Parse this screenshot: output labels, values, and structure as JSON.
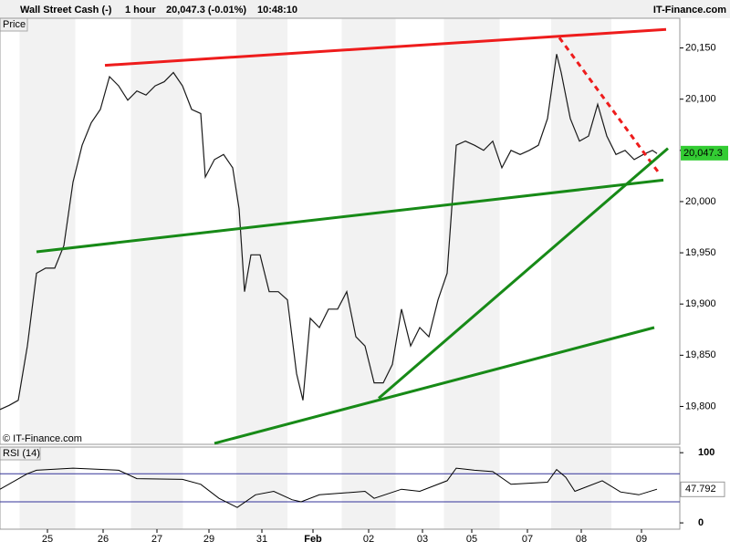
{
  "chart_data": {
    "type": "line",
    "title": "Wall Street Cash (-)",
    "interval": "1 hour",
    "quote": "20,047.3 (-0.01%)",
    "time": "10:48:10",
    "brand": "IT-Finance.com",
    "panel_label": "Price",
    "copyright": "© IT-Finance.com",
    "xlim": [
      0,
      149
    ],
    "xticks": [
      {
        "value": 10.4,
        "label": "25"
      },
      {
        "value": 22.6,
        "label": "26"
      },
      {
        "value": 34.4,
        "label": "27"
      },
      {
        "value": 45.8,
        "label": "29"
      },
      {
        "value": 57.4,
        "label": "31"
      },
      {
        "value": 68.6,
        "label": "Feb"
      },
      {
        "value": 80.8,
        "label": "02"
      },
      {
        "value": 92.6,
        "label": "03"
      },
      {
        "value": 103.4,
        "label": "05"
      },
      {
        "value": 115.6,
        "label": "07"
      },
      {
        "value": 127.4,
        "label": "08"
      },
      {
        "value": 140.6,
        "label": "09"
      }
    ],
    "ylim": [
      19763,
      20179
    ],
    "yticks": [
      {
        "value": 19800,
        "label": "19,800"
      },
      {
        "value": 19850,
        "label": "19,850"
      },
      {
        "value": 19900,
        "label": "19,900"
      },
      {
        "value": 19950,
        "label": "19,950"
      },
      {
        "value": 20000,
        "label": "20,000"
      },
      {
        "value": 20050,
        "label": "20,050"
      },
      {
        "value": 20100,
        "label": "20,100"
      },
      {
        "value": 20150,
        "label": "20,150"
      }
    ],
    "last_price": {
      "value": 20047.3,
      "label": "20,047.3"
    },
    "x": [
      0,
      2,
      4,
      6,
      8,
      10,
      12,
      14,
      16,
      18,
      20,
      22,
      24,
      26,
      28,
      30,
      32,
      34,
      36,
      38,
      40,
      42,
      44,
      45,
      47,
      49,
      51,
      52.4,
      53.6,
      55,
      57,
      59,
      61,
      63,
      65,
      66.4,
      68,
      70,
      72,
      74,
      76,
      78,
      80,
      82,
      84,
      86,
      88,
      90,
      92,
      94,
      96,
      98,
      100,
      102,
      104,
      106,
      108,
      110,
      112,
      114,
      116,
      118,
      120,
      122,
      123,
      125,
      127,
      129,
      131,
      133,
      135,
      137,
      139,
      141,
      143,
      144
    ],
    "series": [
      {
        "color": "#1a1a1a",
        "values": [
          19797,
          19801,
          19806,
          19859,
          19930,
          19935,
          19935,
          19957,
          20019,
          20055,
          20077,
          20090,
          20122,
          20113,
          20099,
          20108,
          20104,
          20113,
          20117,
          20126,
          20113,
          20090,
          20086,
          20024,
          20041,
          20046,
          20033,
          19993,
          19912,
          19948,
          19948,
          19912,
          19912,
          19904,
          19832,
          19806,
          19886,
          19877,
          19895,
          19895,
          19912,
          19868,
          19859,
          19823,
          19823,
          19841,
          19895,
          19859,
          19877,
          19868,
          19904,
          19930,
          20055,
          20059,
          20055,
          20050,
          20059,
          20033,
          20050,
          20046,
          20050,
          20055,
          20081,
          20144,
          20126,
          20081,
          20059,
          20064,
          20095,
          20064,
          20046,
          20050,
          20041,
          20046,
          20050,
          20047
        ]
      }
    ],
    "trendlines": [
      {
        "color": "#ee1c1c",
        "dashed": false,
        "x": [
          23,
          146
        ],
        "y": [
          20133,
          20168
        ]
      },
      {
        "color": "#ee1c1c",
        "dashed": true,
        "x": [
          122.6,
          144.4
        ],
        "y": [
          20160,
          20028
        ]
      },
      {
        "color": "#178a17",
        "dashed": false,
        "x": [
          8,
          145.4
        ],
        "y": [
          19951,
          20021
        ]
      },
      {
        "color": "#178a17",
        "dashed": false,
        "x": [
          83,
          146.4
        ],
        "y": [
          19808,
          20052
        ]
      },
      {
        "color": "#178a17",
        "dashed": false,
        "x": [
          47,
          143.4
        ],
        "y": [
          19764,
          19877
        ]
      }
    ],
    "rsi": {
      "label": "RSI (14)",
      "ylim": [
        -9,
        108
      ],
      "yticks": [
        0,
        100
      ],
      "levels": [
        30,
        70
      ],
      "last": 47.792,
      "x": [
        0,
        6,
        8,
        16,
        26,
        30,
        40,
        44,
        48,
        52,
        56,
        60,
        64,
        66,
        70,
        80,
        82,
        88,
        92,
        98,
        100,
        104,
        108,
        112,
        120,
        122,
        124,
        126,
        132,
        136,
        140,
        144
      ],
      "values": [
        48,
        70,
        75,
        78,
        75,
        63,
        62,
        55,
        35,
        22,
        40,
        45,
        33,
        30,
        40,
        45,
        35,
        48,
        45,
        60,
        78,
        75,
        73,
        55,
        58,
        76,
        65,
        45,
        60,
        44,
        40,
        48
      ]
    }
  }
}
